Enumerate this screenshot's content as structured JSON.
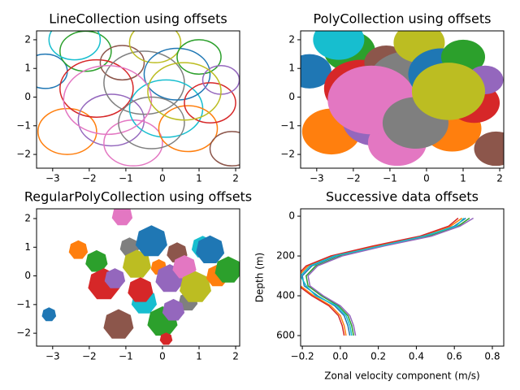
{
  "chart_data": [
    {
      "type": "line-collection",
      "title": "LineCollection using offsets",
      "xlim": [
        -3.44,
        2.11
      ],
      "ylim": [
        -2.48,
        2.31
      ],
      "xticks": [
        {
          "value": -3,
          "label": "−3"
        },
        {
          "value": -2,
          "label": "−2"
        },
        {
          "value": -1,
          "label": "−1"
        },
        0,
        1,
        2
      ],
      "yticks": [
        {
          "value": -2,
          "label": "−2"
        },
        {
          "value": -1,
          "label": "−1"
        },
        0,
        1,
        2
      ],
      "colors": [
        "#1f77b4",
        "#ff7f0e",
        "#2ca02c",
        "#d62728",
        "#9467bd",
        "#8c564b",
        "#e377c2",
        "#7f7f7f",
        "#bcbd22",
        "#17becf"
      ],
      "x": [
        -3.2,
        -2.6,
        -2.1,
        -1.8,
        -1.4,
        -1.1,
        -0.8,
        -0.5,
        -0.2,
        0.1,
        0.4,
        0.7,
        1.0,
        1.3,
        1.6,
        1.9,
        -1.5,
        -0.3,
        0.6,
        -2.4
      ],
      "y": [
        0.9,
        -1.2,
        1.6,
        0.3,
        -0.8,
        1.2,
        -1.6,
        0.5,
        1.9,
        -0.4,
        0.8,
        -1.1,
        1.4,
        -0.2,
        0.6,
        -1.8,
        -0.1,
        -0.9,
        0.2,
        2.0
      ],
      "size": [
        0.6,
        0.8,
        0.7,
        1.0,
        0.9,
        0.6,
        0.8,
        1.1,
        0.7,
        1.0,
        0.9,
        0.8,
        0.6,
        0.7,
        0.5,
        0.6,
        1.2,
        0.9,
        1.0,
        0.7
      ]
    },
    {
      "type": "poly-collection",
      "title": "PolyCollection using offsets",
      "xlim": [
        -3.44,
        2.11
      ],
      "ylim": [
        -2.48,
        2.31
      ],
      "xticks": [
        {
          "value": -3,
          "label": "−3"
        },
        {
          "value": -2,
          "label": "−2"
        },
        {
          "value": -1,
          "label": "−1"
        },
        0,
        1,
        2
      ],
      "yticks": [
        {
          "value": -2,
          "label": "−2"
        },
        {
          "value": -1,
          "label": "−1"
        },
        0,
        1,
        2
      ],
      "colors": [
        "#1f77b4",
        "#ff7f0e",
        "#2ca02c",
        "#d62728",
        "#9467bd",
        "#8c564b",
        "#e377c2",
        "#7f7f7f",
        "#bcbd22",
        "#17becf"
      ],
      "x": [
        -3.2,
        -2.6,
        -2.1,
        -1.8,
        -1.4,
        -1.1,
        -0.8,
        -0.5,
        -0.2,
        0.1,
        0.4,
        0.7,
        1.0,
        1.3,
        1.6,
        1.9,
        -1.5,
        -0.3,
        0.6,
        -2.4
      ],
      "y": [
        0.9,
        -1.2,
        1.6,
        0.3,
        -0.8,
        1.2,
        -1.6,
        0.5,
        1.9,
        -0.4,
        0.8,
        -1.1,
        1.4,
        -0.2,
        0.6,
        -1.8,
        -0.1,
        -0.9,
        0.2,
        2.0
      ],
      "size": [
        0.6,
        0.8,
        0.7,
        1.0,
        0.9,
        0.6,
        0.8,
        1.1,
        0.7,
        1.0,
        0.9,
        0.8,
        0.6,
        0.7,
        0.5,
        0.6,
        1.2,
        0.9,
        1.0,
        0.7
      ]
    },
    {
      "type": "regular-poly-collection",
      "title": "RegularPolyCollection using offsets",
      "xlim": [
        -3.44,
        2.11
      ],
      "ylim": [
        -2.45,
        2.34
      ],
      "xticks": [
        {
          "value": -3,
          "label": "−3"
        },
        {
          "value": -2,
          "label": "−2"
        },
        {
          "value": -1,
          "label": "−1"
        },
        0,
        1,
        2
      ],
      "yticks": [
        {
          "value": -2,
          "label": "−2"
        },
        {
          "value": -1,
          "label": "−1"
        },
        0,
        1,
        2
      ],
      "colors": [
        "#1f77b4",
        "#ff7f0e",
        "#2ca02c",
        "#d62728",
        "#9467bd",
        "#8c564b",
        "#e377c2",
        "#7f7f7f",
        "#bcbd22",
        "#17becf"
      ],
      "x": [
        -3.1,
        -2.3,
        -1.8,
        -1.6,
        -1.3,
        -1.2,
        -1.1,
        -0.9,
        -0.7,
        -0.5,
        -0.3,
        -0.1,
        0.0,
        0.1,
        0.2,
        0.4,
        0.6,
        0.7,
        0.9,
        1.1,
        1.3,
        1.5,
        1.8,
        -0.6,
        0.3
      ],
      "y": [
        -1.35,
        0.9,
        0.5,
        -0.3,
        -0.1,
        -1.7,
        2.1,
        1.0,
        0.4,
        -0.9,
        1.2,
        0.3,
        -1.6,
        -2.2,
        -0.1,
        0.8,
        0.3,
        -0.9,
        -0.4,
        1.0,
        0.9,
        0.0,
        0.2,
        -0.5,
        -1.2
      ],
      "size": [
        9,
        12,
        14,
        20,
        13,
        19,
        13,
        12,
        18,
        16,
        20,
        10,
        19,
        8,
        18,
        13,
        15,
        12,
        20,
        14,
        18,
        14,
        17,
        16,
        14
      ]
    },
    {
      "type": "line",
      "title": "Successive data offsets",
      "xlabel": "Zonal velocity component (m/s)",
      "ylabel": "Depth (m)",
      "xlim": [
        -0.209,
        0.86
      ],
      "ylim": [
        653,
        -37
      ],
      "xticks": [
        {
          "value": -0.2,
          "label": "−0.2"
        },
        {
          "value": 0,
          "label": "0.0"
        },
        0.2,
        0.4,
        0.6,
        0.8
      ],
      "yticks": [
        0,
        200,
        400,
        600
      ],
      "y": [
        10,
        50,
        100,
        150,
        200,
        250,
        300,
        350,
        400,
        450,
        500,
        550,
        600
      ],
      "series": [
        {
          "color": "#1f77b4",
          "values": [
            0.66,
            0.6,
            0.45,
            0.2,
            -0.02,
            -0.15,
            -0.2,
            -0.19,
            -0.12,
            -0.03,
            0.02,
            0.04,
            0.05
          ]
        },
        {
          "color": "#ff7f0e",
          "values": [
            0.64,
            0.58,
            0.43,
            0.18,
            -0.04,
            -0.17,
            -0.22,
            -0.21,
            -0.14,
            -0.05,
            0.0,
            0.02,
            0.03
          ]
        },
        {
          "color": "#2ca02c",
          "values": [
            0.68,
            0.62,
            0.47,
            0.22,
            0.0,
            -0.13,
            -0.18,
            -0.17,
            -0.1,
            -0.01,
            0.04,
            0.06,
            0.07
          ]
        },
        {
          "color": "#d62728",
          "values": [
            0.62,
            0.57,
            0.42,
            0.17,
            -0.05,
            -0.18,
            -0.23,
            -0.22,
            -0.15,
            -0.06,
            -0.01,
            0.01,
            0.02
          ]
        },
        {
          "color": "#9467bd",
          "values": [
            0.7,
            0.63,
            0.48,
            0.23,
            0.01,
            -0.12,
            -0.17,
            -0.16,
            -0.09,
            0.0,
            0.05,
            0.07,
            0.08
          ]
        },
        {
          "color": "#17becf",
          "values": [
            0.65,
            0.61,
            0.44,
            0.21,
            -0.03,
            -0.16,
            -0.21,
            -0.18,
            -0.13,
            -0.02,
            0.03,
            0.05,
            0.06
          ]
        }
      ]
    }
  ]
}
